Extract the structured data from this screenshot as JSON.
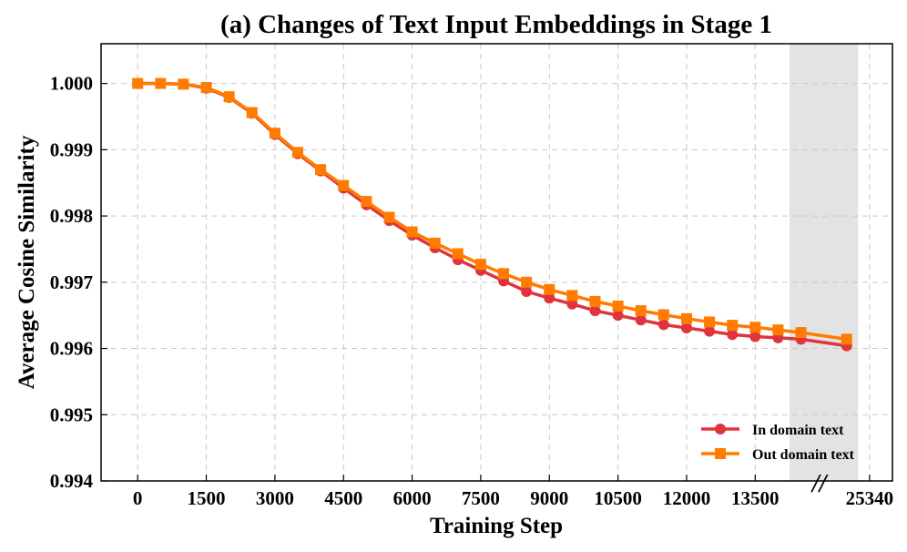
{
  "chart_data": {
    "type": "line",
    "title": "(a) Changes of Text Input Embeddings in Stage 1",
    "xlabel": "Training Step",
    "ylabel": "Average Cosine Similarity",
    "x_tick_labels": [
      "0",
      "1500",
      "3000",
      "4500",
      "6000",
      "7500",
      "9000",
      "10500",
      "12000",
      "13500",
      "25340"
    ],
    "x_tick_steps": [
      0,
      1500,
      3000,
      4500,
      6000,
      7500,
      9000,
      10500,
      12000,
      13500,
      16000
    ],
    "y_ticks": [
      "0.994",
      "0.995",
      "0.996",
      "0.997",
      "0.998",
      "0.999",
      "1.000"
    ],
    "y_tick_values": [
      0.994,
      0.995,
      0.996,
      0.997,
      0.998,
      0.999,
      1.0
    ],
    "xlim": [
      -800,
      16500
    ],
    "ylim": [
      0.994,
      1.0006
    ],
    "axis_break_marker": "//",
    "shaded_region_steps": [
      14250,
      15750
    ],
    "grid": true,
    "legend_position": "lower-right",
    "x": [
      0,
      500,
      1000,
      1500,
      2000,
      2500,
      3000,
      3500,
      4000,
      4500,
      5000,
      5500,
      6000,
      6500,
      7000,
      7500,
      8000,
      8500,
      9000,
      9500,
      10000,
      10500,
      11000,
      11500,
      12000,
      12500,
      13000,
      13500,
      14000,
      14500,
      15500
    ],
    "series": [
      {
        "name": "In domain text",
        "color": "#e0343c",
        "marker": "circle",
        "values": [
          1.0,
          1.0,
          0.99999,
          0.99993,
          0.99979,
          0.99955,
          0.99923,
          0.99894,
          0.99868,
          0.99842,
          0.99817,
          0.99793,
          0.99771,
          0.99752,
          0.99734,
          0.99718,
          0.99702,
          0.99686,
          0.99676,
          0.99667,
          0.99657,
          0.9965,
          0.99643,
          0.99636,
          0.99631,
          0.99626,
          0.99621,
          0.99618,
          0.99616,
          0.99614,
          0.99604
        ]
      },
      {
        "name": "Out domain text",
        "color": "#ff7c00",
        "marker": "square",
        "values": [
          1.0,
          1.0,
          0.99999,
          0.99994,
          0.9998,
          0.99956,
          0.99925,
          0.99896,
          0.9987,
          0.99846,
          0.99822,
          0.99798,
          0.99776,
          0.99759,
          0.99743,
          0.99727,
          0.99713,
          0.997,
          0.99689,
          0.9968,
          0.99671,
          0.99664,
          0.99657,
          0.99651,
          0.99645,
          0.9964,
          0.99635,
          0.99632,
          0.99628,
          0.99624,
          0.99614
        ]
      }
    ]
  }
}
